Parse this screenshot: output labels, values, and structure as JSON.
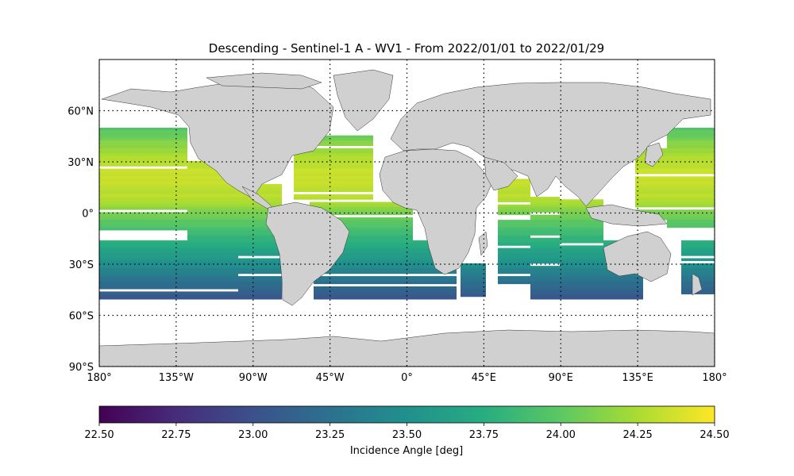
{
  "title": "Descending - Sentinel-1 A - WV1 - From 2022/01/01 to 2022/01/29",
  "map": {
    "lon_range": [
      -180,
      180
    ],
    "lat_range": [
      -90,
      90
    ],
    "grid": "dotted",
    "land_color": "#d0d0d0",
    "lon_ticks": [
      {
        "value": -180,
        "label": "180°"
      },
      {
        "value": -135,
        "label": "135°W"
      },
      {
        "value": -90,
        "label": "90°W"
      },
      {
        "value": -45,
        "label": "45°W"
      },
      {
        "value": 0,
        "label": "0°"
      },
      {
        "value": 45,
        "label": "45°E"
      },
      {
        "value": 90,
        "label": "90°E"
      },
      {
        "value": 135,
        "label": "135°E"
      },
      {
        "value": 180,
        "label": "180°"
      }
    ],
    "lat_ticks": [
      {
        "value": 60,
        "label": "60°N"
      },
      {
        "value": 30,
        "label": "30°N"
      },
      {
        "value": 0,
        "label": "0°"
      },
      {
        "value": -30,
        "label": "30°S"
      },
      {
        "value": -60,
        "label": "60°S"
      },
      {
        "value": -90,
        "label": "90°S"
      }
    ],
    "data_extent_lat": [
      -50,
      50
    ],
    "approx_incidence_profile": [
      {
        "lat": 50,
        "value": 23.95
      },
      {
        "lat": 40,
        "value": 24.15
      },
      {
        "lat": 30,
        "value": 24.3
      },
      {
        "lat": 20,
        "value": 24.35
      },
      {
        "lat": 10,
        "value": 24.3
      },
      {
        "lat": 0,
        "value": 24.1
      },
      {
        "lat": -10,
        "value": 23.9
      },
      {
        "lat": -20,
        "value": 23.7
      },
      {
        "lat": -30,
        "value": 23.5
      },
      {
        "lat": -40,
        "value": 23.25
      },
      {
        "lat": -50,
        "value": 23.05
      }
    ]
  },
  "colorbar": {
    "colormap": "viridis",
    "min": 22.5,
    "max": 24.5,
    "ticks": [
      "22.50",
      "22.75",
      "23.00",
      "23.25",
      "23.50",
      "23.75",
      "24.00",
      "24.25",
      "24.50"
    ],
    "label": "Incidence Angle [deg]"
  }
}
